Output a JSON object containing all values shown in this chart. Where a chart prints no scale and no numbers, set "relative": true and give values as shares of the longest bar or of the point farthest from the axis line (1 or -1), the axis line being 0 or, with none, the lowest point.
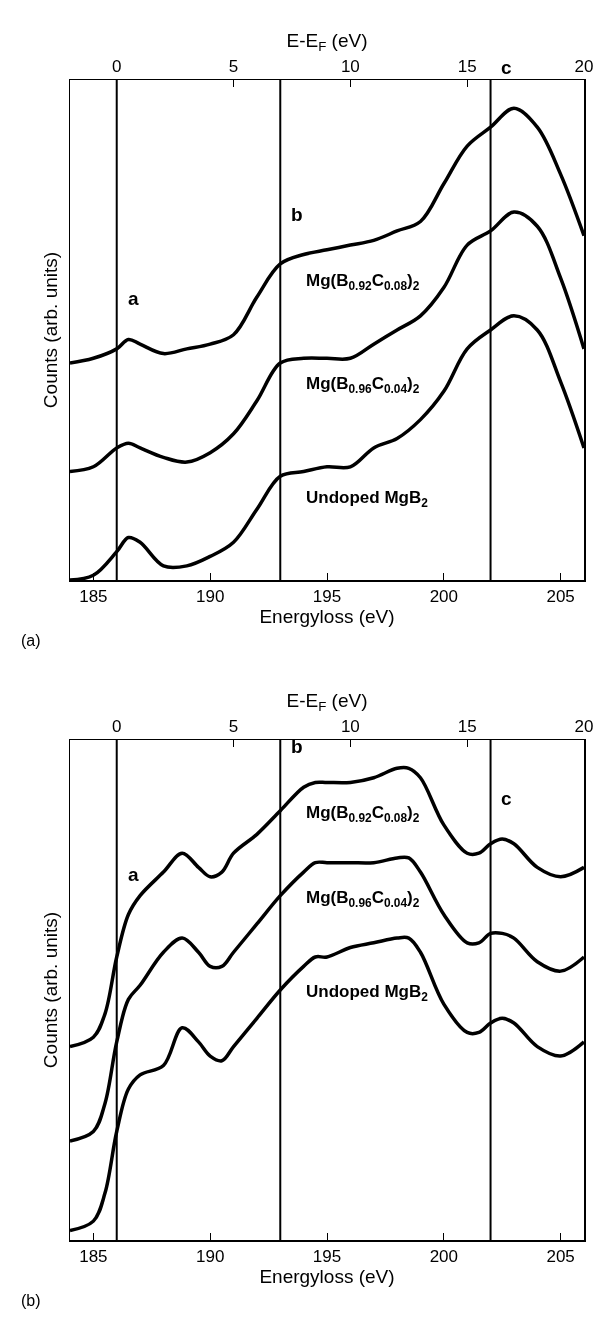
{
  "chart_data": [
    {
      "type": "line",
      "relative": true,
      "xlabel": "Energyloss (eV)",
      "ylabel": "Counts (arb. units)",
      "x2label": "E-E$_{F}$ (eV)",
      "xlim": [
        184,
        206
      ],
      "xticks": [
        185,
        190,
        195,
        200,
        205
      ],
      "x2lim": [
        -2,
        20
      ],
      "x2ticks": [
        0,
        5,
        10,
        15,
        20
      ],
      "tick_labels": "x",
      "legend": false,
      "line_style": "solid",
      "x": [
        184,
        185,
        186,
        186.5,
        187,
        188,
        189,
        190,
        191,
        192,
        193,
        194,
        195,
        196,
        197,
        198,
        199,
        200,
        201,
        202,
        203,
        204,
        205,
        206
      ],
      "series": [
        {
          "name": "Mg(B$_{0.92}$C$_{0.08}$)$_{2}$",
          "color": "#000000",
          "values": [
            0.46,
            0.47,
            0.49,
            0.51,
            0.5,
            0.48,
            0.49,
            0.5,
            0.52,
            0.6,
            0.67,
            0.69,
            0.7,
            0.71,
            0.72,
            0.74,
            0.76,
            0.84,
            0.92,
            0.96,
            1.0,
            0.96,
            0.86,
            0.73
          ]
        },
        {
          "name": "Mg(B$_{0.96}$C$_{0.04}$)$_{2}$",
          "color": "#000000",
          "values": [
            0.23,
            0.24,
            0.28,
            0.29,
            0.28,
            0.26,
            0.25,
            0.27,
            0.31,
            0.38,
            0.46,
            0.47,
            0.47,
            0.47,
            0.5,
            0.53,
            0.56,
            0.62,
            0.71,
            0.74,
            0.78,
            0.75,
            0.64,
            0.49
          ]
        },
        {
          "name": "Undoped MgB$_{2}$",
          "color": "#000000",
          "values": [
            0.0,
            0.01,
            0.06,
            0.09,
            0.08,
            0.03,
            0.03,
            0.05,
            0.08,
            0.15,
            0.22,
            0.23,
            0.24,
            0.24,
            0.28,
            0.3,
            0.34,
            0.4,
            0.49,
            0.53,
            0.56,
            0.53,
            0.42,
            0.28
          ]
        }
      ],
      "ref_lines": [
        {
          "axis": "x",
          "value": 186
        },
        {
          "axis": "x",
          "value": 193
        },
        {
          "axis": "x",
          "value": 202
        }
      ],
      "annotations": [
        "a",
        "b",
        "c",
        "(a)"
      ]
    },
    {
      "type": "line",
      "relative": true,
      "xlabel": "Energyloss (eV)",
      "ylabel": "Counts (arb. units)",
      "x2label": "E-E$_{F}$ (eV)",
      "xlim": [
        184,
        206
      ],
      "xticks": [
        185,
        190,
        195,
        200,
        205
      ],
      "x2lim": [
        -2,
        20
      ],
      "x2ticks": [
        0,
        5,
        10,
        15,
        20
      ],
      "tick_labels": "x",
      "legend": false,
      "line_style": "solid",
      "x": [
        184,
        185,
        185.5,
        186,
        186.5,
        187,
        188,
        188.8,
        189.5,
        190,
        190.5,
        191,
        192,
        193,
        194,
        194.5,
        195,
        196,
        197,
        198,
        198.5,
        199,
        200,
        201,
        201.5,
        202,
        202.5,
        203,
        204,
        205,
        206
      ],
      "series": [
        {
          "name": "Mg(B$_{0.92}$C$_{0.08}$)$_{2}$",
          "color": "#000000",
          "values": [
            0.41,
            0.43,
            0.48,
            0.6,
            0.69,
            0.73,
            0.78,
            0.82,
            0.79,
            0.77,
            0.78,
            0.82,
            0.86,
            0.91,
            0.96,
            0.97,
            0.97,
            0.97,
            0.98,
            1.0,
            1.0,
            0.98,
            0.88,
            0.82,
            0.82,
            0.84,
            0.85,
            0.84,
            0.79,
            0.77,
            0.79
          ]
        },
        {
          "name": "Mg(B$_{0.96}$C$_{0.04}$)$_{2}$",
          "color": "#000000",
          "values": [
            0.21,
            0.23,
            0.29,
            0.42,
            0.51,
            0.54,
            0.61,
            0.64,
            0.61,
            0.58,
            0.58,
            0.61,
            0.67,
            0.73,
            0.78,
            0.8,
            0.8,
            0.8,
            0.8,
            0.81,
            0.81,
            0.78,
            0.69,
            0.63,
            0.63,
            0.65,
            0.65,
            0.64,
            0.59,
            0.57,
            0.6
          ]
        },
        {
          "name": "Undoped MgB$_{2}$",
          "color": "#000000",
          "values": [
            0.02,
            0.04,
            0.1,
            0.23,
            0.32,
            0.35,
            0.37,
            0.45,
            0.42,
            0.39,
            0.38,
            0.41,
            0.47,
            0.53,
            0.58,
            0.6,
            0.6,
            0.62,
            0.63,
            0.64,
            0.64,
            0.61,
            0.5,
            0.44,
            0.44,
            0.46,
            0.47,
            0.46,
            0.41,
            0.39,
            0.42
          ]
        }
      ],
      "ref_lines": [
        {
          "axis": "x",
          "value": 186
        },
        {
          "axis": "x",
          "value": 193
        },
        {
          "axis": "x",
          "value": 202
        }
      ],
      "annotations": [
        "a",
        "b",
        "c",
        "(b)"
      ]
    }
  ]
}
